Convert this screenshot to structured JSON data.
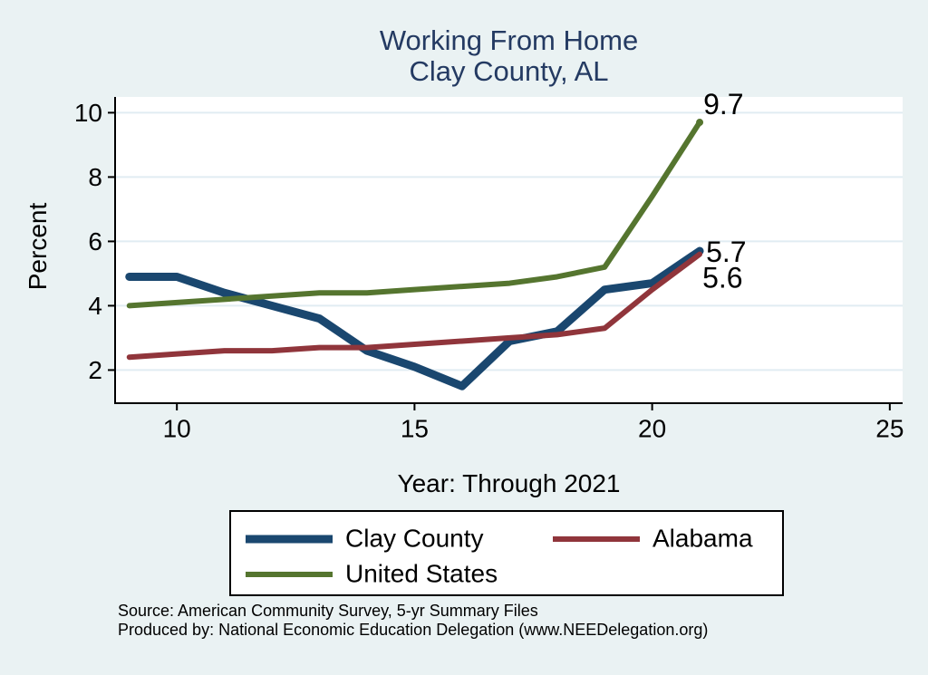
{
  "title": {
    "line1": "Working From Home",
    "line2": "Clay County, AL"
  },
  "chart_data": {
    "type": "line",
    "title": "Working From Home — Clay County, AL",
    "xlabel": "Year: Through 2021",
    "ylabel": "Percent",
    "x": [
      9,
      10,
      11,
      12,
      13,
      14,
      15,
      16,
      17,
      18,
      19,
      20,
      21
    ],
    "series": [
      {
        "name": "Clay County",
        "color": "#1a476f",
        "line_width": 9,
        "values": [
          4.9,
          4.9,
          4.4,
          4.0,
          3.6,
          2.6,
          2.1,
          1.5,
          2.9,
          3.2,
          4.5,
          4.7,
          5.7
        ],
        "end_label": "5.7"
      },
      {
        "name": "Alabama",
        "color": "#90353b",
        "line_width": 6,
        "values": [
          2.4,
          2.5,
          2.6,
          2.6,
          2.7,
          2.7,
          2.8,
          2.9,
          3.0,
          3.1,
          3.3,
          4.5,
          5.6
        ],
        "end_label": "5.6"
      },
      {
        "name": "United States",
        "color": "#55752f",
        "line_width": 6,
        "values": [
          4.0,
          4.1,
          4.2,
          4.3,
          4.4,
          4.4,
          4.5,
          4.6,
          4.7,
          4.9,
          5.2,
          7.4,
          9.7
        ],
        "end_label": "9.7",
        "end_marker": true
      }
    ],
    "xticks": [
      10,
      15,
      20,
      25
    ],
    "yticks": [
      2,
      4,
      6,
      8,
      10
    ],
    "xlim": [
      8.7,
      25.27
    ],
    "ylim": [
      0.97,
      10.49
    ],
    "grid": "horizontal",
    "legend_position": "below"
  },
  "footer": {
    "source": "Source: American Community Survey, 5-yr Summary Files",
    "produced_by": "Produced by: National Economic Education Delegation (www.NEEDelegation.org)"
  },
  "colors": {
    "canvas_bg": "#eaf2f3",
    "plot_bg": "#ffffff",
    "grid": "#e1ecf2",
    "axis": "#000000",
    "title_text": "#243a62",
    "end_label_text": "#000000"
  }
}
